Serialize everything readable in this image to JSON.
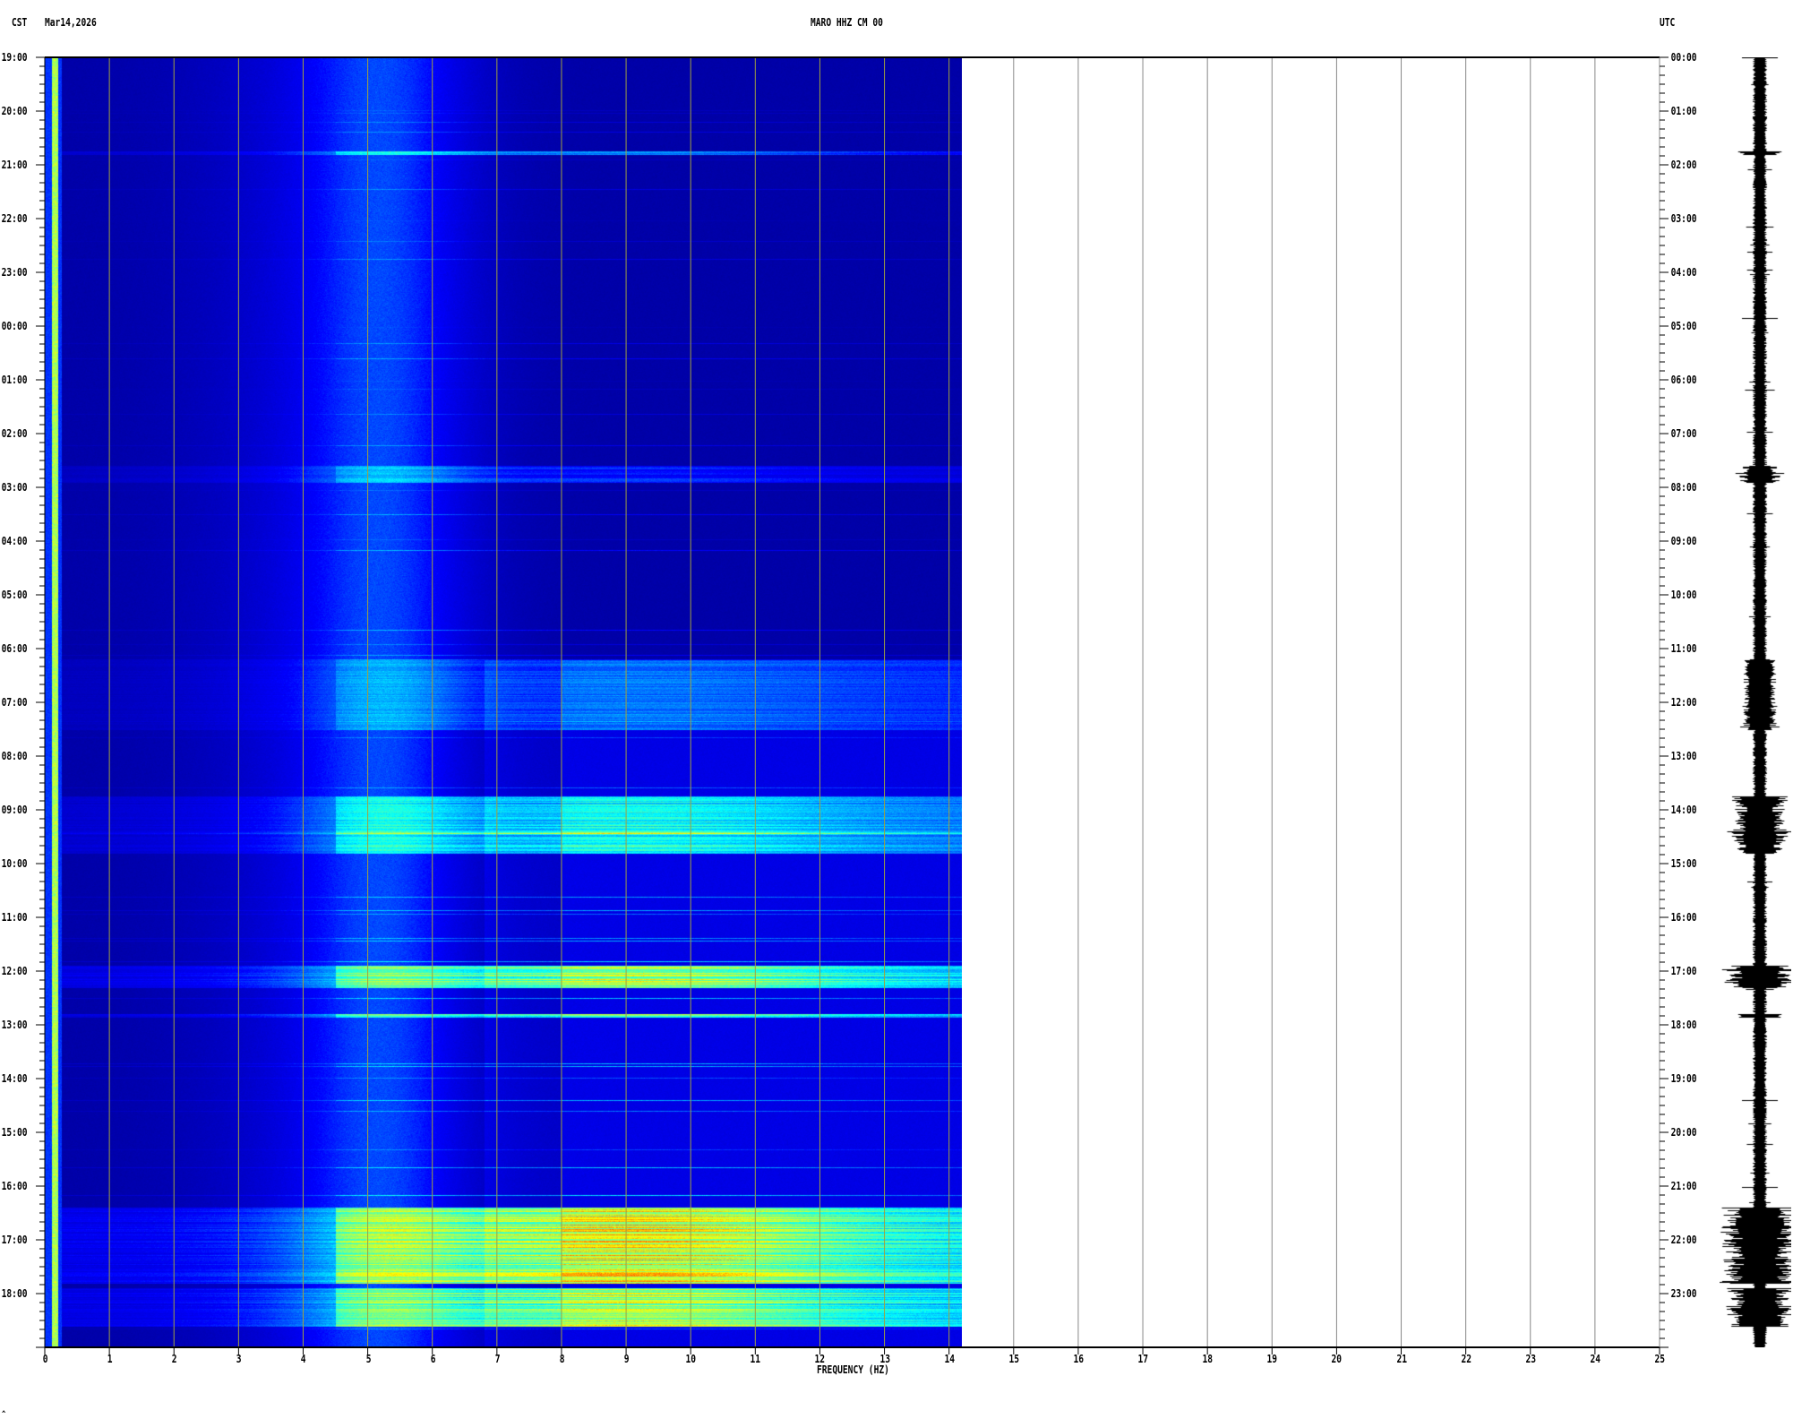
{
  "header": {
    "left_zone": "CST",
    "date": "Mar14,2026",
    "station": "MARO HHZ CM 00",
    "right_zone": "UTC"
  },
  "footer_mark": "^",
  "chart_data": {
    "type": "heatmap",
    "title": "MARO HHZ CM 00",
    "xlabel": "FREQUENCY (HZ)",
    "xlim": [
      0,
      25
    ],
    "data_xmax": 14.2,
    "x_ticks": [
      "0",
      "1",
      "2",
      "3",
      "4",
      "5",
      "6",
      "7",
      "8",
      "9",
      "10",
      "11",
      "12",
      "13",
      "14",
      "15",
      "16",
      "17",
      "18",
      "19",
      "20",
      "21",
      "22",
      "23",
      "24",
      "25"
    ],
    "y_left_label": "CST",
    "y_left_ticks": [
      "19:00",
      "20:00",
      "21:00",
      "22:00",
      "23:00",
      "00:00",
      "01:00",
      "02:00",
      "03:00",
      "04:00",
      "05:00",
      "06:00",
      "07:00",
      "08:00",
      "09:00",
      "10:00",
      "11:00",
      "12:00",
      "13:00",
      "14:00",
      "15:00",
      "16:00",
      "17:00",
      "18:00"
    ],
    "y_right_label": "UTC",
    "y_right_ticks": [
      "00:00",
      "01:00",
      "02:00",
      "03:00",
      "04:00",
      "05:00",
      "06:00",
      "07:00",
      "08:00",
      "09:00",
      "10:00",
      "11:00",
      "12:00",
      "13:00",
      "14:00",
      "15:00",
      "16:00",
      "17:00",
      "18:00",
      "19:00",
      "20:00",
      "21:00",
      "22:00",
      "23:00"
    ],
    "grid": true,
    "colormap": [
      "#00007f",
      "#0000ff",
      "#00ffff",
      "#ffff00",
      "#ff0000"
    ],
    "dominant_noise_band_hz": [
      4,
      6.5
    ],
    "energy_events_utc_hours": [
      {
        "start": 1.75,
        "end": 1.8,
        "level": 0.5
      },
      {
        "start": 7.6,
        "end": 7.9,
        "level": 0.35
      },
      {
        "start": 11.2,
        "end": 12.5,
        "level": 0.3
      },
      {
        "start": 13.75,
        "end": 14.8,
        "level": 0.55
      },
      {
        "start": 14.4,
        "end": 14.45,
        "level": 0.85
      },
      {
        "start": 16.9,
        "end": 17.3,
        "level": 0.85
      },
      {
        "start": 17.8,
        "end": 17.85,
        "level": 0.7
      },
      {
        "start": 21.4,
        "end": 22.8,
        "level": 0.95
      },
      {
        "start": 22.9,
        "end": 23.6,
        "level": 0.85
      }
    ]
  }
}
